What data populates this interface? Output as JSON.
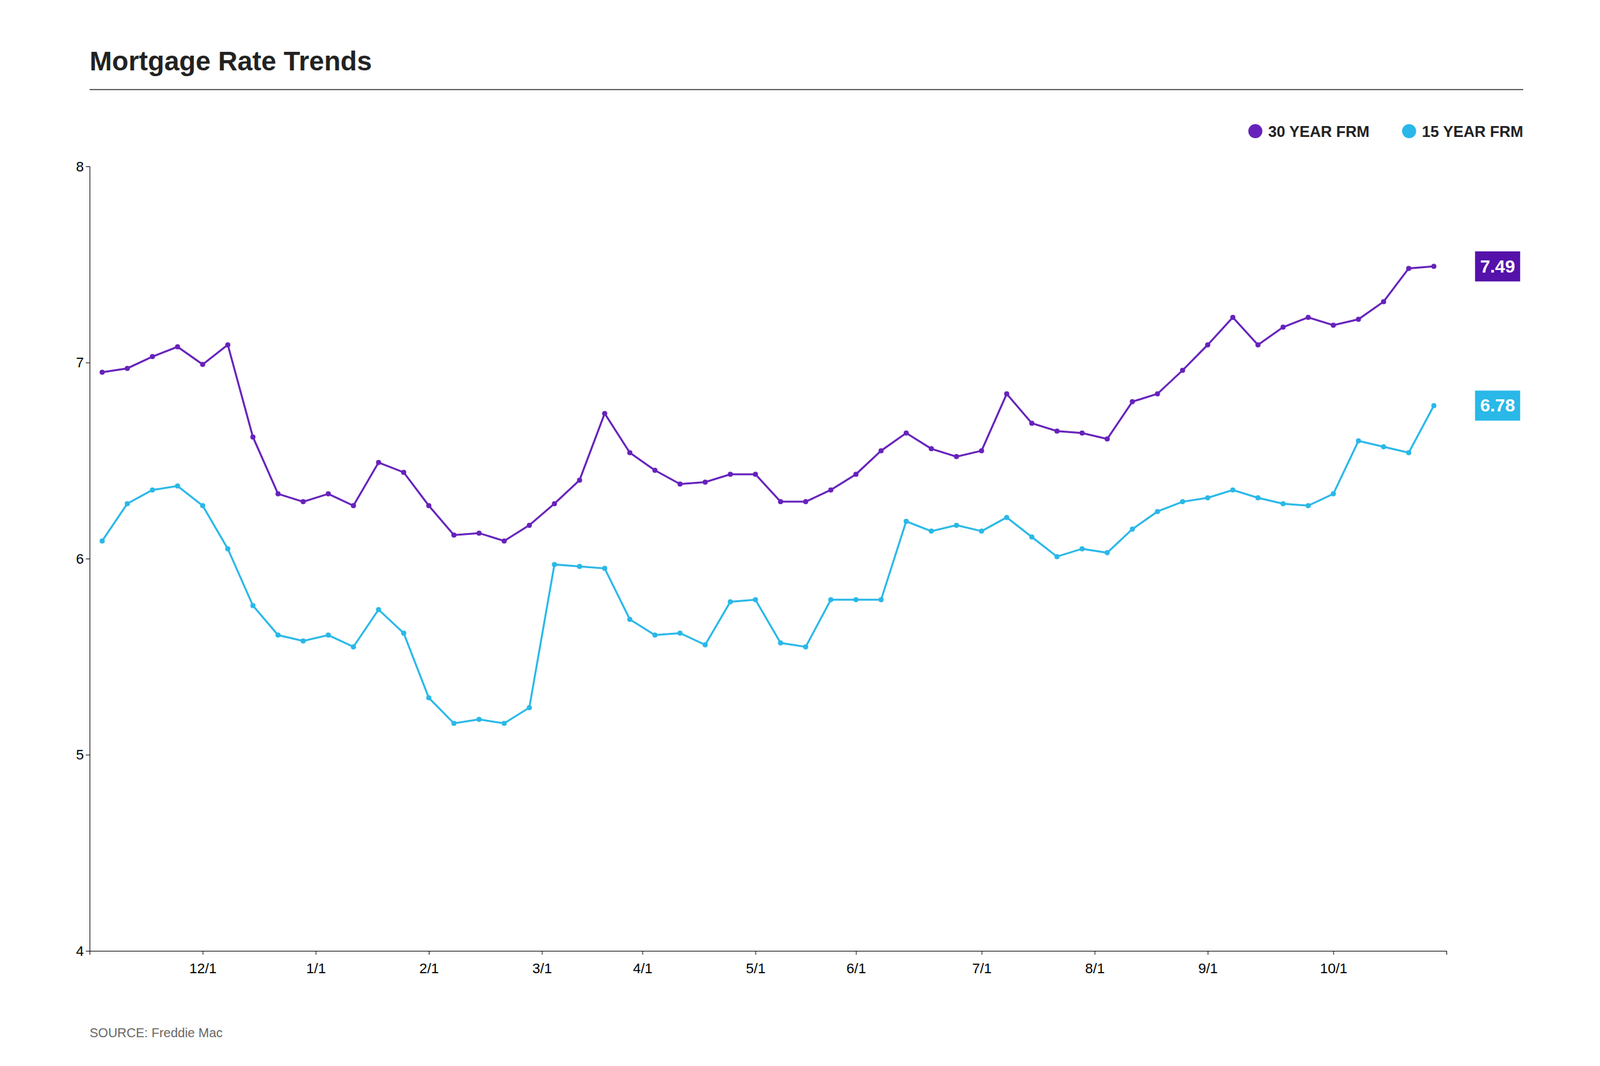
{
  "chart_data": {
    "type": "line",
    "title": "Mortgage Rate Trends",
    "source": "SOURCE: Freddie Mac",
    "x": [
      0,
      1,
      2,
      3,
      4,
      5,
      6,
      7,
      8,
      9,
      10,
      11,
      12,
      13,
      14,
      15,
      16,
      17,
      18,
      19,
      20,
      21,
      22,
      23,
      24,
      25,
      26,
      27,
      28,
      29,
      30,
      31,
      32,
      33,
      34,
      35,
      36,
      37,
      38,
      39,
      40,
      41,
      42,
      43,
      44,
      45,
      46,
      47,
      48,
      49,
      50,
      51,
      52,
      53
    ],
    "xlim": [
      -0.5,
      53.5
    ],
    "xticks": [
      {
        "value": 4,
        "label": "12/1"
      },
      {
        "value": 8.5,
        "label": "1/1"
      },
      {
        "value": 13,
        "label": "2/1"
      },
      {
        "value": 17.5,
        "label": "3/1"
      },
      {
        "value": 21.5,
        "label": "4/1"
      },
      {
        "value": 26,
        "label": "5/1"
      },
      {
        "value": 30,
        "label": "6/1"
      },
      {
        "value": 35,
        "label": "7/1"
      },
      {
        "value": 39.5,
        "label": "8/1"
      },
      {
        "value": 44,
        "label": "9/1"
      },
      {
        "value": 49,
        "label": "10/1"
      }
    ],
    "ylim": [
      4,
      8
    ],
    "yticks": [
      4,
      5,
      6,
      7,
      8
    ],
    "grid": false,
    "legend": "top-right",
    "series": [
      {
        "name": "30 YEAR FRM",
        "color": "#6622BB",
        "marker": "circle",
        "values": [
          6.95,
          6.97,
          7.03,
          7.08,
          6.99,
          7.09,
          6.62,
          6.33,
          6.29,
          6.33,
          6.27,
          6.49,
          6.44,
          6.27,
          6.12,
          6.13,
          6.09,
          6.17,
          6.28,
          6.4,
          6.74,
          6.54,
          6.45,
          6.38,
          6.39,
          6.43,
          6.43,
          6.29,
          6.29,
          6.35,
          6.43,
          6.55,
          6.64,
          6.56,
          6.52,
          6.55,
          6.84,
          6.69,
          6.65,
          6.64,
          6.61,
          6.8,
          6.84,
          6.96,
          7.09,
          7.23,
          7.09,
          7.18,
          7.23,
          7.19,
          7.22,
          7.31,
          7.48,
          7.49
        ]
      },
      {
        "name": "15 YEAR FRM",
        "color": "#29B8E8",
        "marker": "circle",
        "values": [
          6.09,
          6.28,
          6.35,
          6.37,
          6.27,
          6.05,
          5.76,
          5.61,
          5.58,
          5.61,
          5.55,
          5.74,
          5.62,
          5.29,
          5.16,
          5.18,
          5.16,
          5.24,
          5.97,
          5.96,
          5.95,
          5.69,
          5.61,
          5.62,
          5.56,
          5.78,
          5.79,
          5.57,
          5.55,
          5.79,
          5.79,
          5.79,
          6.19,
          6.14,
          6.17,
          6.14,
          6.21,
          6.11,
          6.01,
          6.05,
          6.03,
          6.15,
          6.24,
          6.29,
          6.31,
          6.35,
          6.31,
          6.28,
          6.27,
          6.33,
          6.6,
          6.57,
          6.54,
          6.78
        ]
      }
    ],
    "annotations": [
      {
        "text": "7.49",
        "y": 7.49,
        "color": "#5511AA"
      },
      {
        "text": "6.78",
        "y": 6.78,
        "color": "#29B8E8"
      }
    ]
  }
}
